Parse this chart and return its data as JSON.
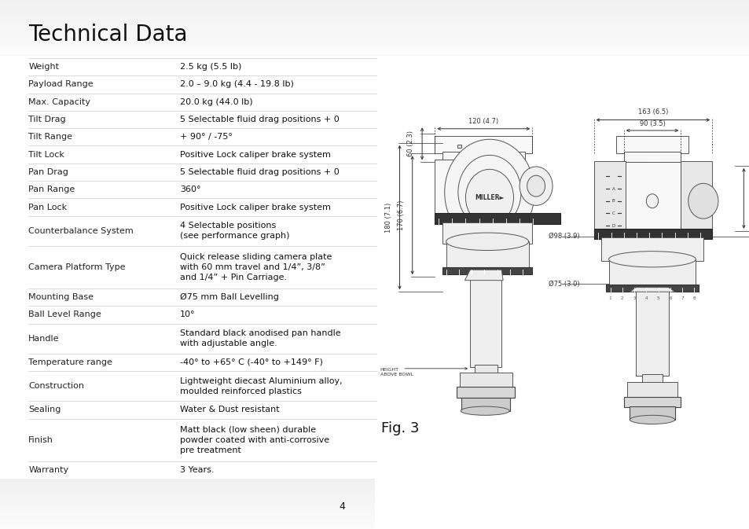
{
  "title": "Technical Data",
  "bg_color": "#ffffff",
  "header_bg_top": "#e0e0e0",
  "header_bg_bottom": "#f5f5f5",
  "table_rows": [
    [
      "Weight",
      "2.5 kg (5.5 lb)",
      1
    ],
    [
      "Payload Range",
      "2.0 – 9.0 kg (4.4 - 19.8 lb)",
      1
    ],
    [
      "Max. Capacity",
      "20.0 kg (44.0 lb)",
      1
    ],
    [
      "Tilt Drag",
      "5 Selectable fluid drag positions + 0",
      1
    ],
    [
      "Tilt Range",
      "+ 90° / -75°",
      1
    ],
    [
      "Tilt Lock",
      "Positive Lock caliper brake system",
      1
    ],
    [
      "Pan Drag",
      "5 Selectable fluid drag positions + 0",
      1
    ],
    [
      "Pan Range",
      "360°",
      1
    ],
    [
      "Pan Lock",
      "Positive Lock caliper brake system",
      1
    ],
    [
      "Counterbalance System",
      "4 Selectable positions\n(see performance graph)",
      2
    ],
    [
      "Camera Platform Type",
      "Quick release sliding camera plate\nwith 60 mm travel and 1/4”, 3/8”\nand 1/4” + Pin Carriage.",
      3
    ],
    [
      "Mounting Base",
      "Ø75 mm Ball Levelling",
      1
    ],
    [
      "Ball Level Range",
      "10°",
      1
    ],
    [
      "Handle",
      "Standard black anodised pan handle\nwith adjustable angle.",
      2
    ],
    [
      "Temperature range",
      "-40° to +65° C (-40° to +149° F)",
      1
    ],
    [
      "Construction",
      "Lightweight diecast Aluminium alloy,\nmoulded reinforced plastics",
      2
    ],
    [
      "Sealing",
      "Water & Dust resistant",
      1
    ],
    [
      "Finish",
      "Matt black (low sheen) durable\npowder coated with anti-corrosive\npre treatment",
      3
    ],
    [
      "Warranty",
      "3 Years.",
      1
    ]
  ],
  "fig_label": "Fig. 3",
  "page_number": "4",
  "divider_color": "#cccccc",
  "text_color": "#111111",
  "title_fontsize": 20,
  "table_fontsize": 8.0,
  "ann_color": "#333333",
  "ann_fs": 6.0,
  "draw_color": "#555555"
}
